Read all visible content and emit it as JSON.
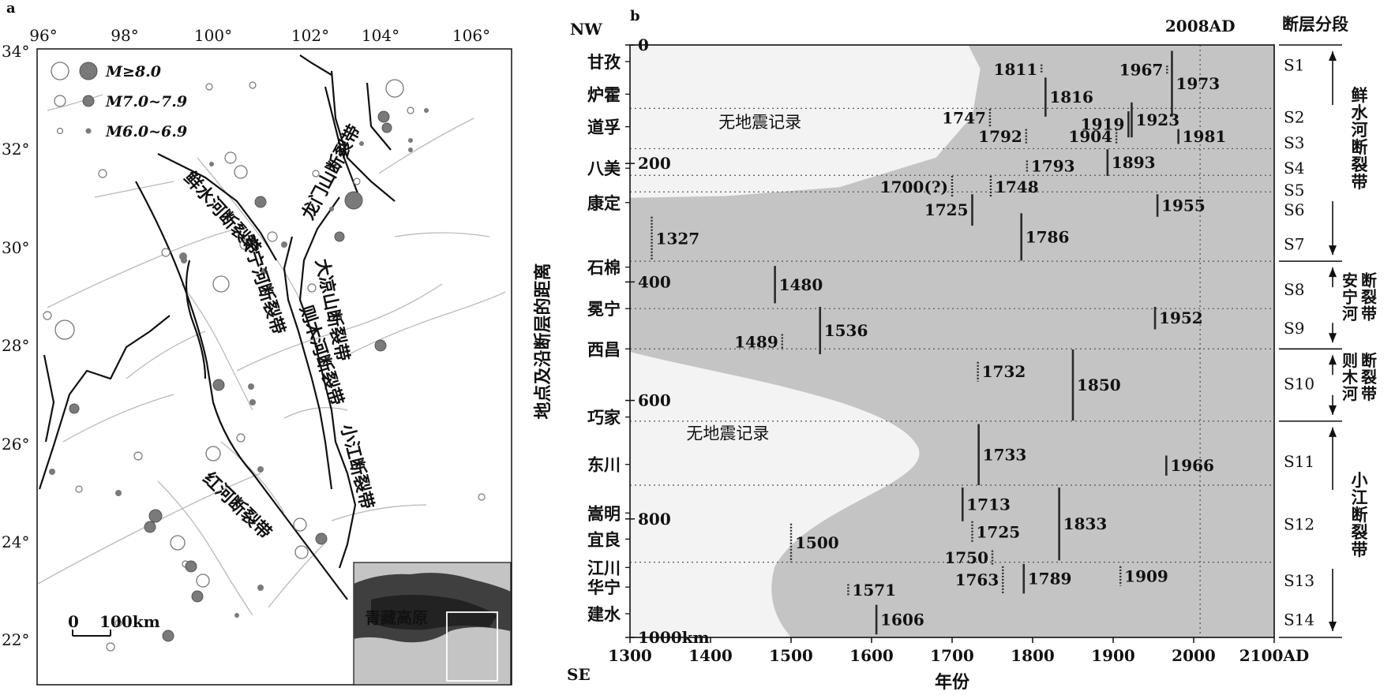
{
  "panel_a": {
    "label": "a",
    "lon_ticks": [
      "96°",
      "98°",
      "100°",
      "102°",
      "104°",
      "106°"
    ],
    "lat_ticks": [
      "34°",
      "32°",
      "30°",
      "28°",
      "26°",
      "24°",
      "22°"
    ],
    "legend": [
      {
        "label": "M≥8.0",
        "italic_m": true
      },
      {
        "label": "M7.0~7.9",
        "italic_m": true
      },
      {
        "label": "M6.0~6.9",
        "italic_m": true
      }
    ],
    "fault_labels": [
      "鲜水河断裂带",
      "龙门山断裂带",
      "安宁河断裂带",
      "大凉山断裂带",
      "则木河断裂带",
      "小江断裂带",
      "红河断裂带"
    ],
    "scale": {
      "zero": "0",
      "length": "100km"
    },
    "inset_label": "青藏高原"
  },
  "chart_data": {
    "type": "scatter",
    "panel_label": "b",
    "xlabel": "年份",
    "ylabel": "地点及沿断层的距离",
    "xlim": [
      1300,
      2100
    ],
    "ylim": [
      0,
      1000
    ],
    "x_ticks": [
      "1300",
      "1400",
      "1500",
      "1600",
      "1700",
      "1800",
      "1900",
      "2000",
      "2100AD"
    ],
    "y_ticks": [
      "0",
      "200",
      "400",
      "600",
      "800",
      "1000km"
    ],
    "top_left": "NW",
    "bottom_left": "SE",
    "reference_line": {
      "year": 2008,
      "label": "2008AD"
    },
    "no_record_label": "无地震记录",
    "places": [
      {
        "name": "甘孜",
        "distance": 28
      },
      {
        "name": "炉霍",
        "distance": 83
      },
      {
        "name": "道孚",
        "distance": 138
      },
      {
        "name": "八美",
        "distance": 208
      },
      {
        "name": "康定",
        "distance": 266
      },
      {
        "name": "石棉",
        "distance": 375
      },
      {
        "name": "冕宁",
        "distance": 445
      },
      {
        "name": "西昌",
        "distance": 513
      },
      {
        "name": "巧家",
        "distance": 628
      },
      {
        "name": "东川",
        "distance": 708
      },
      {
        "name": "嵩明",
        "distance": 790
      },
      {
        "name": "宜良",
        "distance": 834
      },
      {
        "name": "江川",
        "distance": 882
      },
      {
        "name": "华宁",
        "distance": 915
      },
      {
        "name": "建水",
        "distance": 960
      }
    ],
    "segments": [
      {
        "name": "S1",
        "center": 34
      },
      {
        "name": "S2",
        "center": 122
      },
      {
        "name": "S3",
        "center": 165
      },
      {
        "name": "S4",
        "center": 208
      },
      {
        "name": "S5",
        "center": 245
      },
      {
        "name": "S6",
        "center": 278
      },
      {
        "name": "S7",
        "center": 336
      },
      {
        "name": "S8",
        "center": 413
      },
      {
        "name": "S9",
        "center": 478
      },
      {
        "name": "S10",
        "center": 572
      },
      {
        "name": "S11",
        "center": 703
      },
      {
        "name": "S12",
        "center": 809
      },
      {
        "name": "S13",
        "center": 904
      },
      {
        "name": "S14",
        "center": 970
      }
    ],
    "segment_boundaries": [
      107,
      175,
      220,
      248,
      365,
      445,
      513,
      635,
      743,
      873
    ],
    "fault_zones": [
      {
        "name": "鲜水河断裂带",
        "from": 0,
        "to": 365
      },
      {
        "name": "安宁河断裂带",
        "from": 365,
        "to": 513
      },
      {
        "name": "则木河断裂带",
        "from": 513,
        "to": 635
      },
      {
        "name": "小江断裂带",
        "from": 635,
        "to": 1000
      }
    ],
    "segment_header": "断层分段",
    "events": [
      {
        "year": "1811",
        "x": 1811,
        "y1": 33,
        "y2": 49,
        "dotted": true,
        "label_side": "left"
      },
      {
        "year": "1816",
        "x": 1816,
        "y1": 55,
        "y2": 121,
        "dotted": false,
        "label_side": "right"
      },
      {
        "year": "1967",
        "x": 1967,
        "y1": 35,
        "y2": 49,
        "dotted": true,
        "label_side": "left"
      },
      {
        "year": "1973",
        "x": 1973,
        "y1": 10,
        "y2": 121,
        "dotted": false,
        "label_side": "right"
      },
      {
        "year": "1747",
        "x": 1747,
        "y1": 108,
        "y2": 138,
        "dotted": true,
        "label_side": "left"
      },
      {
        "year": "1919",
        "x": 1919,
        "y1": 112,
        "y2": 156,
        "dotted": false,
        "label_side": "left"
      },
      {
        "year": "1923",
        "x": 1923,
        "y1": 97,
        "y2": 156,
        "dotted": false,
        "label_side": "right"
      },
      {
        "year": "1792",
        "x": 1792,
        "y1": 142,
        "y2": 167,
        "dotted": true,
        "label_side": "left"
      },
      {
        "year": "1904",
        "x": 1904,
        "y1": 142,
        "y2": 167,
        "dotted": true,
        "label_side": "left"
      },
      {
        "year": "1981",
        "x": 1981,
        "y1": 142,
        "y2": 167,
        "dotted": false,
        "label_side": "right"
      },
      {
        "year": "1793",
        "x": 1793,
        "y1": 195,
        "y2": 214,
        "dotted": true,
        "label_side": "right"
      },
      {
        "year": "1893",
        "x": 1893,
        "y1": 176,
        "y2": 221,
        "dotted": false,
        "label_side": "right"
      },
      {
        "year": "1700(?)",
        "x": 1700,
        "y1": 221,
        "y2": 258,
        "dotted": true,
        "label_side": "left"
      },
      {
        "year": "1748",
        "x": 1748,
        "y1": 221,
        "y2": 258,
        "dotted": true,
        "label_side": "right"
      },
      {
        "year": "1725",
        "x": 1725,
        "y1": 252,
        "y2": 305,
        "dotted": false,
        "label_side": "left"
      },
      {
        "year": "1955",
        "x": 1955,
        "y1": 252,
        "y2": 290,
        "dotted": false,
        "label_side": "right"
      },
      {
        "year": "1327",
        "x": 1327,
        "y1": 290,
        "y2": 364,
        "dotted": true,
        "label_side": "right"
      },
      {
        "year": "1786",
        "x": 1786,
        "y1": 284,
        "y2": 364,
        "dotted": false,
        "label_side": "right"
      },
      {
        "year": "1480",
        "x": 1480,
        "y1": 373,
        "y2": 436,
        "dotted": false,
        "label_side": "right"
      },
      {
        "year": "1952",
        "x": 1952,
        "y1": 442,
        "y2": 480,
        "dotted": false,
        "label_side": "right"
      },
      {
        "year": "1489",
        "x": 1489,
        "y1": 488,
        "y2": 515,
        "dotted": true,
        "label_side": "left"
      },
      {
        "year": "1536",
        "x": 1536,
        "y1": 442,
        "y2": 522,
        "dotted": false,
        "label_side": "right"
      },
      {
        "year": "1732",
        "x": 1732,
        "y1": 535,
        "y2": 568,
        "dotted": true,
        "label_side": "right"
      },
      {
        "year": "1850",
        "x": 1850,
        "y1": 514,
        "y2": 634,
        "dotted": false,
        "label_side": "right"
      },
      {
        "year": "1733",
        "x": 1733,
        "y1": 640,
        "y2": 743,
        "dotted": false,
        "label_side": "right"
      },
      {
        "year": "1966",
        "x": 1966,
        "y1": 693,
        "y2": 727,
        "dotted": false,
        "label_side": "right"
      },
      {
        "year": "1713",
        "x": 1713,
        "y1": 747,
        "y2": 804,
        "dotted": false,
        "label_side": "right"
      },
      {
        "year": "1725",
        "x": 1725,
        "y1": 804,
        "y2": 840,
        "dotted": true,
        "label_side": "right"
      },
      {
        "year": "1833",
        "x": 1833,
        "y1": 747,
        "y2": 870,
        "dotted": false,
        "label_side": "right"
      },
      {
        "year": "1500",
        "x": 1500,
        "y1": 808,
        "y2": 873,
        "dotted": true,
        "label_side": "right"
      },
      {
        "year": "1750",
        "x": 1750,
        "y1": 853,
        "y2": 878,
        "dotted": true,
        "label_side": "left"
      },
      {
        "year": "1763",
        "x": 1763,
        "y1": 880,
        "y2": 926,
        "dotted": true,
        "label_side": "left"
      },
      {
        "year": "1789",
        "x": 1789,
        "y1": 876,
        "y2": 926,
        "dotted": false,
        "label_side": "right"
      },
      {
        "year": "1909",
        "x": 1909,
        "y1": 880,
        "y2": 913,
        "dotted": true,
        "label_side": "right"
      },
      {
        "year": "1571",
        "x": 1571,
        "y1": 910,
        "y2": 930,
        "dotted": true,
        "label_side": "right"
      },
      {
        "year": "1606",
        "x": 1606,
        "y1": 945,
        "y2": 995,
        "dotted": false,
        "label_side": "right"
      }
    ]
  }
}
